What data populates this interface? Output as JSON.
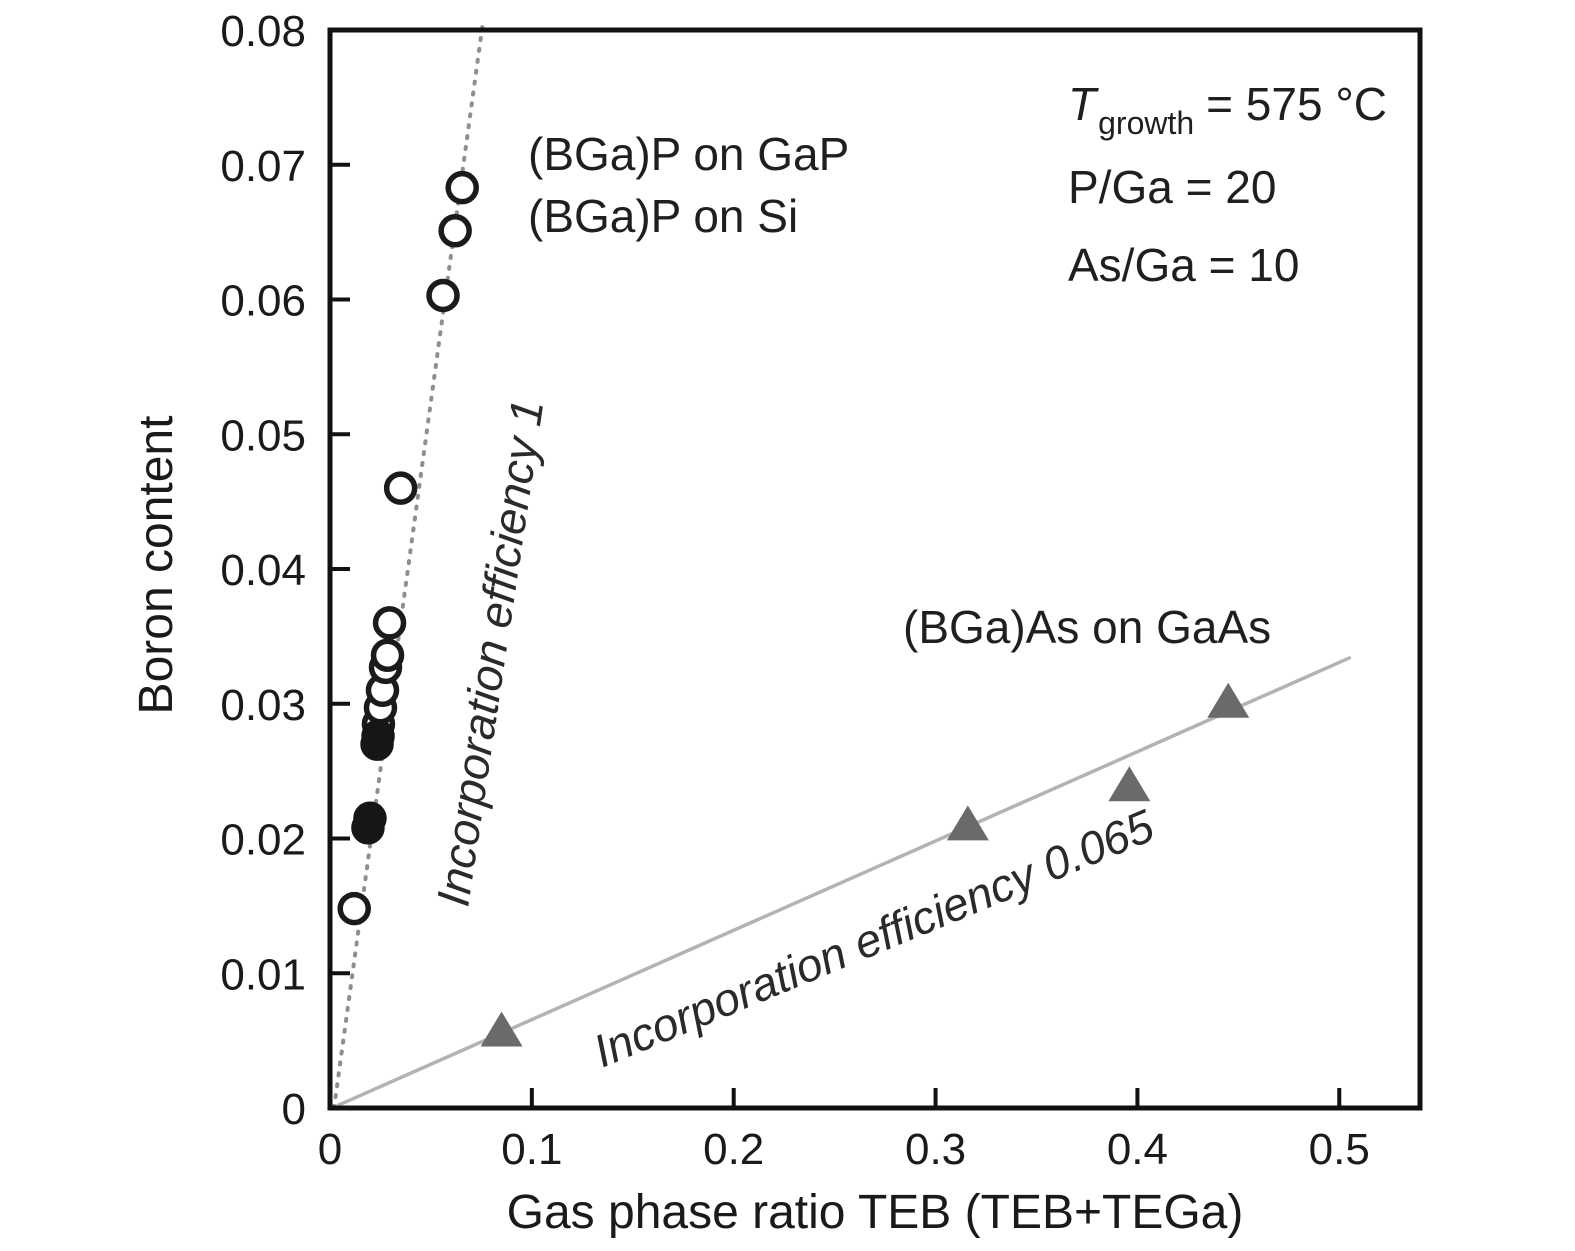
{
  "chart_data": {
    "type": "scatter",
    "title": "",
    "xlabel": "Gas phase ratio TEB (TEB+TEGa)",
    "ylabel": "Boron content",
    "xlim": [
      0,
      0.54
    ],
    "ylim": [
      0,
      0.08
    ],
    "grid": false,
    "x_ticks": [
      0,
      0.1,
      0.2,
      0.3,
      0.4,
      0.5
    ],
    "x_tick_labels": [
      "0",
      "0.1",
      "0.2",
      "0.3",
      "0.4",
      "0.5"
    ],
    "y_ticks": [
      0,
      0.01,
      0.02,
      0.03,
      0.04,
      0.05,
      0.06,
      0.07,
      0.08
    ],
    "y_tick_labels": [
      "0",
      "0.01",
      "0.02",
      "0.03",
      "0.04",
      "0.05",
      "0.06",
      "0.07",
      "0.08"
    ],
    "series": [
      {
        "name": "(BGa)P on GaP / on Si (open circles)",
        "marker": "circle-open",
        "color": "#1b1b1b",
        "points": [
          [
            0.012,
            0.0148
          ],
          [
            0.024,
            0.0285
          ],
          [
            0.025,
            0.0297
          ],
          [
            0.026,
            0.031
          ],
          [
            0.0275,
            0.0327
          ],
          [
            0.0285,
            0.0336
          ],
          [
            0.0295,
            0.036
          ],
          [
            0.035,
            0.046
          ],
          [
            0.056,
            0.0603
          ],
          [
            0.062,
            0.0651
          ],
          [
            0.0655,
            0.0683
          ]
        ]
      },
      {
        "name": "(BGa)P filled circles",
        "marker": "circle-filled",
        "color": "#161616",
        "points": [
          [
            0.0188,
            0.0208
          ],
          [
            0.0198,
            0.0215
          ],
          [
            0.0233,
            0.027
          ],
          [
            0.0238,
            0.0276
          ]
        ]
      },
      {
        "name": "(BGa)As on GaAs (triangles)",
        "marker": "triangle",
        "color": "#6a6a6a",
        "points": [
          [
            0.085,
            0.0056
          ],
          [
            0.316,
            0.0209
          ],
          [
            0.396,
            0.0238
          ],
          [
            0.445,
            0.03
          ]
        ]
      }
    ],
    "lines": [
      {
        "name": "incorporation-efficiency-1",
        "style": "dotted",
        "color": "#8f8f8f",
        "width": 4,
        "from": [
          0.002,
          0.0
        ],
        "to": [
          0.0757,
          0.0805
        ]
      },
      {
        "name": "incorporation-efficiency-0065",
        "style": "solid",
        "color": "#b3b3b3",
        "width": 3.5,
        "from": [
          0.004,
          0.0002
        ],
        "to": [
          0.505,
          0.0334
        ]
      }
    ],
    "annotations": {
      "series1_line1": "(BGa)P on GaP",
      "series1_line2": "(BGa)P on Si",
      "series2_label": "(BGa)As on GaAs",
      "eff1_label": "Incorporation efficiency 1",
      "eff2_label": "Incorporation efficiency 0.065",
      "cond_T_symbol": "T",
      "cond_T_sub": "growth",
      "cond_T_value": "= 575 °C",
      "cond_P": "P/Ga = 20",
      "cond_As": "As/Ga = 10"
    }
  }
}
